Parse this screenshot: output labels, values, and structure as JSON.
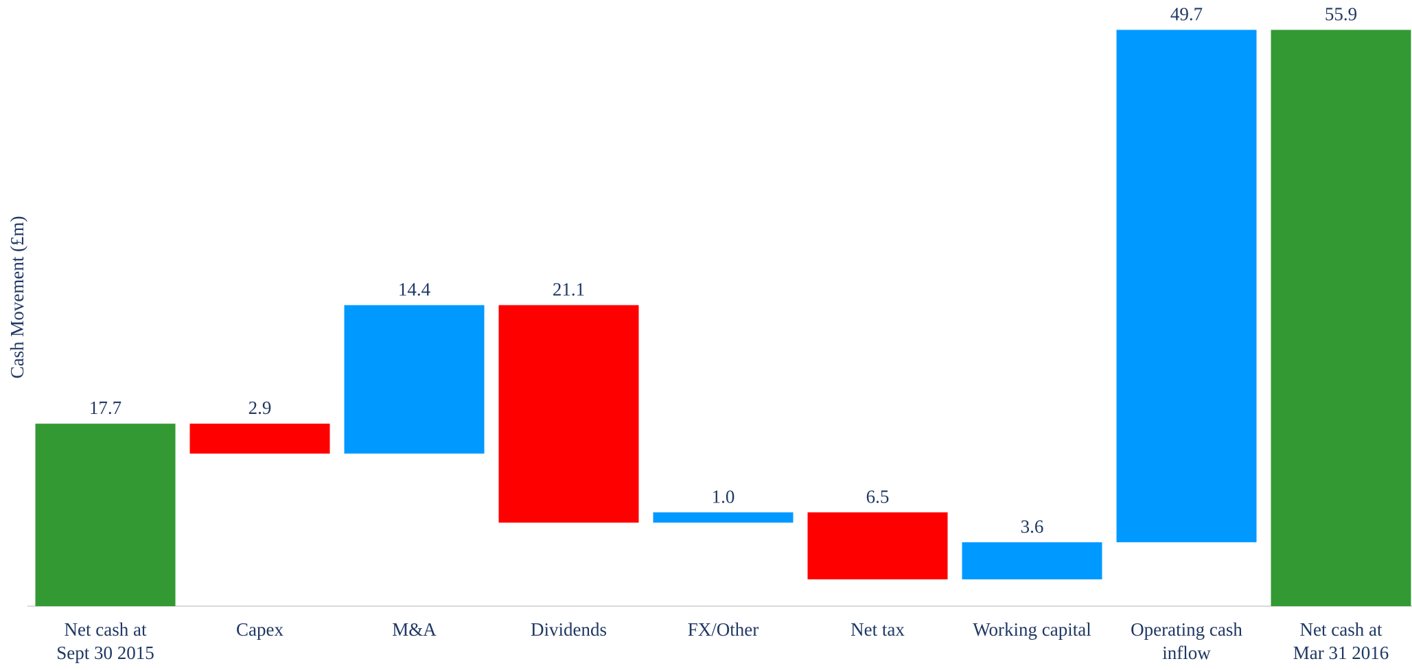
{
  "chart_data": {
    "type": "waterfall",
    "y_label": "Cash Movement (£m)",
    "categories": [
      "Net cash at\nSept 30 2015",
      "Capex",
      "M&A",
      "Dividends",
      "FX/Other",
      "Net tax",
      "Working capital",
      "Operating cash\ninflow",
      "Net cash at\nMar 31 2016"
    ],
    "values": [
      17.7,
      2.9,
      14.4,
      21.1,
      1.0,
      6.5,
      3.6,
      49.7,
      55.9
    ],
    "value_labels": [
      "17.7",
      "2.9",
      "14.4",
      "21.1",
      "1.0",
      "6.5",
      "3.6",
      "49.7",
      "55.9"
    ],
    "kinds": [
      "total",
      "decrease",
      "increase",
      "decrease",
      "increase",
      "decrease",
      "increase",
      "increase",
      "total"
    ],
    "colors": {
      "total": "#339933",
      "decrease": "#ff0000",
      "increase": "#0099ff"
    },
    "ylim": [
      0,
      56
    ]
  }
}
